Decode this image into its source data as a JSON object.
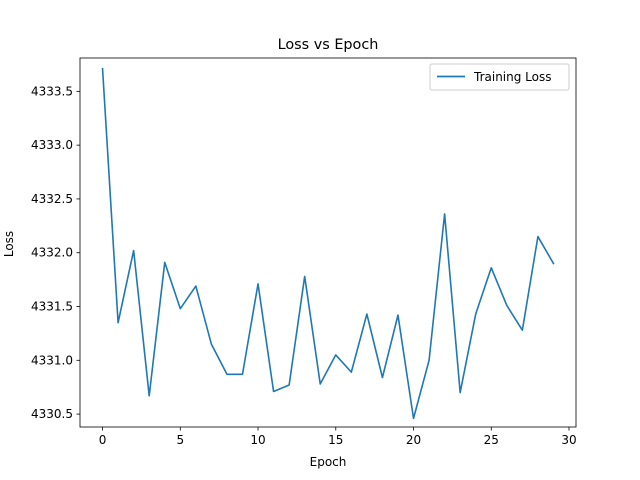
{
  "chart_data": {
    "type": "line",
    "title": "Loss vs Epoch",
    "xlabel": "Epoch",
    "ylabel": "Loss",
    "xlim": [
      -1.45,
      30.45
    ],
    "ylim": [
      4330.38,
      4333.81
    ],
    "xticks": [
      0,
      5,
      10,
      15,
      20,
      25,
      30
    ],
    "yticks": [
      4330.5,
      4331.0,
      4331.5,
      4332.0,
      4332.5,
      4333.0,
      4333.5
    ],
    "grid": false,
    "legend_position": "top-right",
    "series": [
      {
        "name": "Training Loss",
        "color": "#1f77b4",
        "x": [
          0,
          1,
          2,
          3,
          4,
          5,
          6,
          7,
          8,
          9,
          10,
          11,
          12,
          13,
          14,
          15,
          16,
          17,
          18,
          19,
          20,
          21,
          22,
          23,
          24,
          25,
          26,
          27,
          28,
          29
        ],
        "y": [
          4333.71,
          4331.35,
          4332.02,
          4330.67,
          4331.91,
          4331.48,
          4331.69,
          4331.15,
          4330.87,
          4330.87,
          4331.71,
          4330.71,
          4330.77,
          4331.78,
          4330.78,
          4331.05,
          4330.89,
          4331.43,
          4330.84,
          4331.42,
          4330.46,
          4331.0,
          4332.36,
          4330.7,
          4331.43,
          4331.86,
          4331.51,
          4331.28,
          4332.15,
          4331.9
        ]
      }
    ]
  }
}
